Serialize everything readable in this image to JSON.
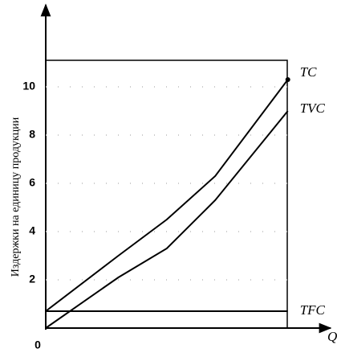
{
  "chart_data": {
    "type": "line",
    "ylabel": "Издержки на единицу продукции",
    "xlabel": "Q",
    "x": [
      0,
      3,
      5,
      7,
      10
    ],
    "xlim": [
      0,
      11.7
    ],
    "ylim": [
      0,
      13.4
    ],
    "yticks": [
      0,
      2,
      4,
      6,
      8,
      10
    ],
    "series": [
      {
        "name": "TC",
        "color": "#000000",
        "values": [
          0.7,
          3.0,
          4.5,
          6.3,
          10.3
        ]
      },
      {
        "name": "TVC",
        "color": "#000000",
        "values": [
          0,
          2.1,
          3.3,
          5.3,
          9.0
        ]
      },
      {
        "name": "TFC",
        "color": "#000000",
        "values": [
          0.7,
          0.7,
          0.7,
          0.7,
          0.7
        ]
      }
    ]
  }
}
